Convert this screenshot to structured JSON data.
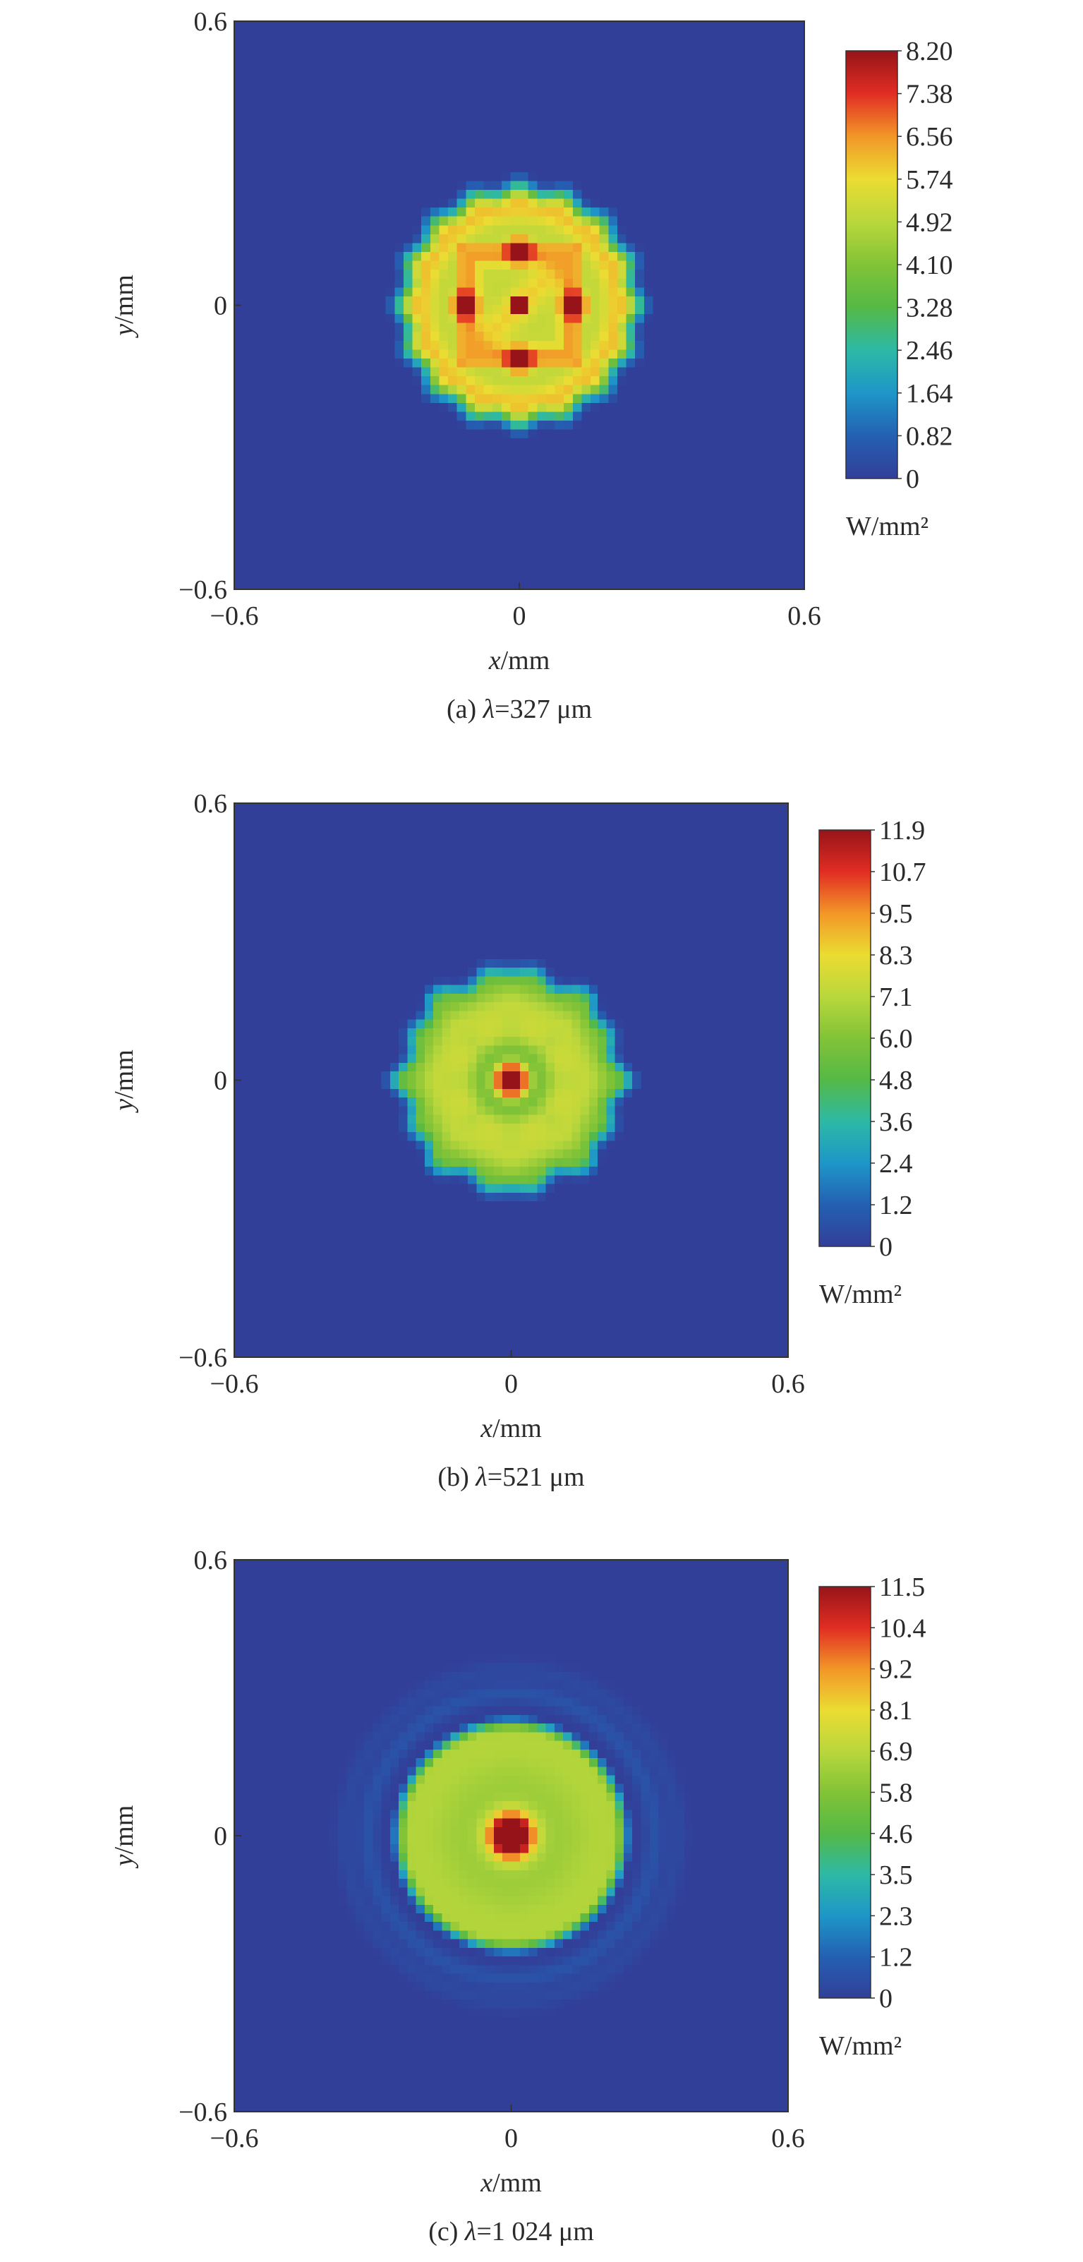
{
  "chart_data": [
    {
      "type": "heatmap",
      "caption_prefix": "(a) ",
      "caption_symbol": "λ",
      "caption_rest": "=327 μm",
      "xlabel_var": "x",
      "xlabel_unit": "/mm",
      "ylabel_var": "y",
      "ylabel_unit": "/mm",
      "xlim": [
        -0.6,
        0.6
      ],
      "ylim": [
        -0.6,
        0.6
      ],
      "x_ticks": [
        "−0.6",
        "0",
        "0.6"
      ],
      "y_ticks": [
        "0.6",
        "0",
        "−0.6"
      ],
      "colorbar_ticks": [
        "8.20",
        "7.38",
        "6.56",
        "5.74",
        "4.92",
        "4.10",
        "3.28",
        "2.46",
        "1.64",
        "0.82",
        "0"
      ],
      "colorbar_range": [
        0,
        8.2
      ],
      "colorbar_unit": "W/mm²",
      "pattern": "square-lobes",
      "beam_radius_mm": 0.28,
      "peak_value": 8.2
    },
    {
      "type": "heatmap",
      "caption_prefix": "(b) ",
      "caption_symbol": "λ",
      "caption_rest": "=521 μm",
      "xlabel_var": "x",
      "xlabel_unit": "/mm",
      "ylabel_var": "y",
      "ylabel_unit": "/mm",
      "xlim": [
        -0.6,
        0.6
      ],
      "ylim": [
        -0.6,
        0.6
      ],
      "x_ticks": [
        "−0.6",
        "0",
        "0.6"
      ],
      "y_ticks": [
        "0.6",
        "0",
        "−0.6"
      ],
      "colorbar_ticks": [
        "11.9",
        "10.7",
        "9.5",
        "8.3",
        "7.1",
        "6.0",
        "4.8",
        "3.6",
        "2.4",
        "1.2",
        "0"
      ],
      "colorbar_range": [
        0,
        11.9
      ],
      "colorbar_unit": "W/mm²",
      "pattern": "octagon-ring",
      "beam_radius_mm": 0.28,
      "peak_value": 11.9
    },
    {
      "type": "heatmap",
      "caption_prefix": "(c) ",
      "caption_symbol": "λ",
      "caption_rest": "=1 024 μm",
      "xlabel_var": "x",
      "xlabel_unit": "/mm",
      "ylabel_var": "y",
      "ylabel_unit": "/mm",
      "xlim": [
        -0.6,
        0.6
      ],
      "ylim": [
        -0.6,
        0.6
      ],
      "x_ticks": [
        "−0.6",
        "0",
        "0.6"
      ],
      "y_ticks": [
        "0.6",
        "0",
        "−0.6"
      ],
      "colorbar_ticks": [
        "11.5",
        "10.4",
        "9.2",
        "8.1",
        "6.9",
        "5.8",
        "4.6",
        "3.5",
        "2.3",
        "1.2",
        "0"
      ],
      "colorbar_range": [
        0,
        11.5
      ],
      "colorbar_unit": "W/mm²",
      "pattern": "smooth-disk",
      "beam_radius_mm": 0.26,
      "peak_value": 11.5
    }
  ]
}
